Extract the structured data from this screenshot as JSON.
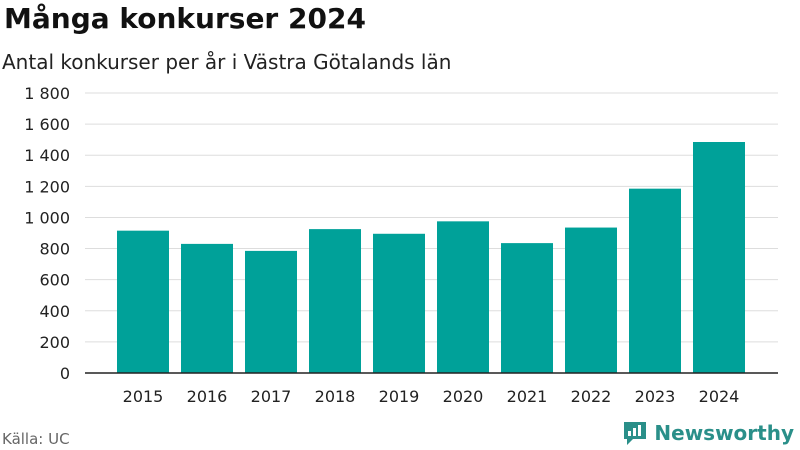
{
  "header": {
    "title": "Många konkurser 2024",
    "subtitle": "Antal konkurser per år i Västra Götalands län"
  },
  "footer": {
    "source": "Källa: UC",
    "brand": "Newsworthy"
  },
  "colors": {
    "bar": "#00a199",
    "brand": "#2a8f89"
  },
  "chart_data": {
    "type": "bar",
    "title": "Många konkurser 2024",
    "subtitle": "Antal konkurser per år i Västra Götalands län",
    "xlabel": "",
    "ylabel": "",
    "categories": [
      "2015",
      "2016",
      "2017",
      "2018",
      "2019",
      "2020",
      "2021",
      "2022",
      "2023",
      "2024"
    ],
    "values": [
      915,
      830,
      785,
      925,
      895,
      975,
      835,
      935,
      1185,
      1485
    ],
    "ylim": [
      0,
      1800
    ],
    "yticks": [
      0,
      200,
      400,
      600,
      800,
      1000,
      1200,
      1400,
      1600,
      1800
    ],
    "ytick_labels": [
      "0",
      "200",
      "400",
      "600",
      "800",
      "1 000",
      "1 200",
      "1 400",
      "1 600",
      "1 800"
    ],
    "grid": true,
    "legend": "none"
  }
}
